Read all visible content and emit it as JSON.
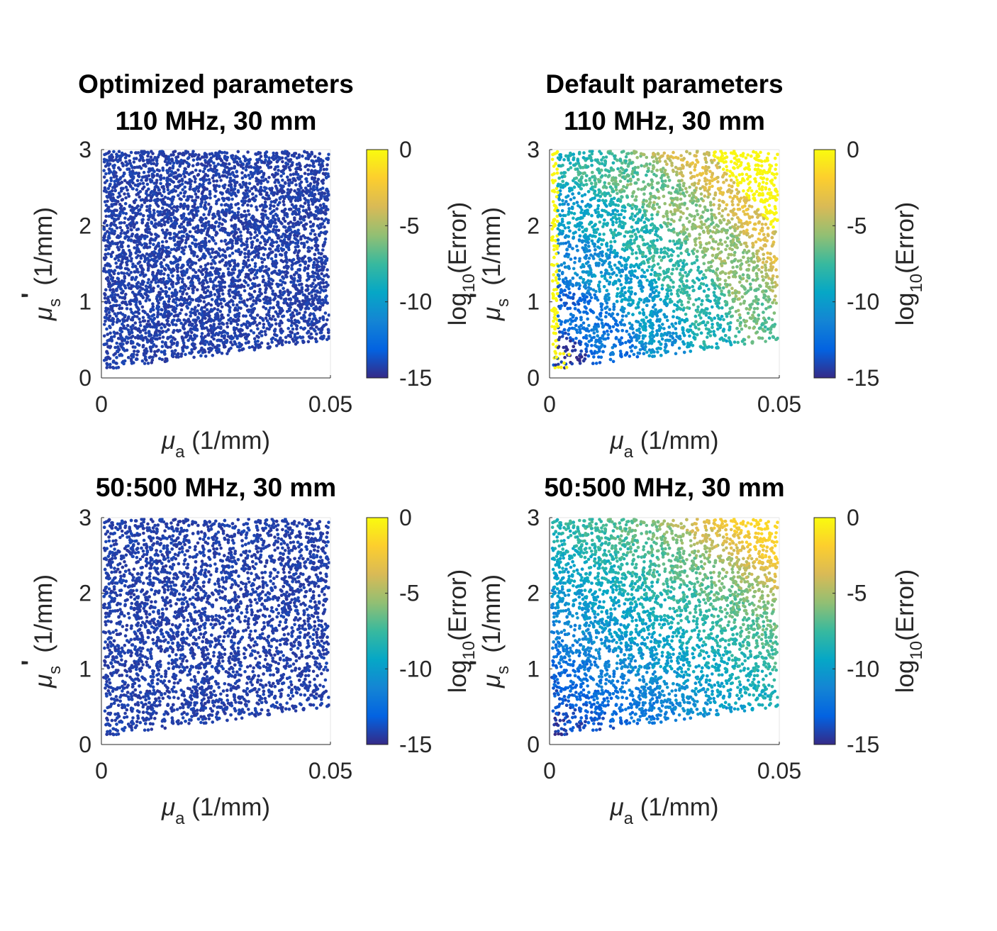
{
  "chart_data": [
    {
      "type": "scatter",
      "title_lines": [
        "Optimized parameters",
        "110 MHz, 30 mm"
      ],
      "xlabel": {
        "symbol": "μ",
        "subscript": "a",
        "unit": "(1/mm)"
      },
      "ylabel": {
        "symbol": "μ",
        "subscript": "s",
        "prime": "'",
        "unit": "(1/mm)"
      },
      "xlim": [
        0,
        0.05
      ],
      "ylim": [
        0,
        3
      ],
      "xticks": [
        "0",
        "0.05"
      ],
      "yticks": [
        "0",
        "1",
        "2",
        "3"
      ],
      "color_variable": "log10(Error)",
      "domain_lower_edge": [
        [
          0.0,
          0.1
        ],
        [
          0.05,
          0.5
        ]
      ],
      "error_regions": [
        {
          "region": "entire sampled domain",
          "log10_error_range": [
            -15,
            -14
          ]
        }
      ],
      "colorbar": {
        "label_prefix": "log",
        "label_sub": "10",
        "label_suffix": "(Error)",
        "clim": [
          -15,
          0
        ],
        "ticks": [
          "0",
          "-5",
          "-10",
          "-15"
        ]
      }
    },
    {
      "type": "scatter",
      "title_lines": [
        "Default parameters",
        "110 MHz, 30 mm"
      ],
      "xlabel": {
        "symbol": "μ",
        "subscript": "a",
        "unit": "(1/mm)"
      },
      "ylabel": {
        "symbol": "μ",
        "subscript": "s",
        "prime": "'",
        "unit": "(1/mm)"
      },
      "xlim": [
        0,
        0.05
      ],
      "ylim": [
        0,
        3
      ],
      "xticks": [
        "0",
        "0.05"
      ],
      "yticks": [
        "0",
        "1",
        "2",
        "3"
      ],
      "color_variable": "log10(Error)",
      "domain_lower_edge": [
        [
          0.0,
          0.1
        ],
        [
          0.05,
          0.5
        ]
      ],
      "error_regions": [
        {
          "region": "low mu_a, low mu_s'",
          "log10_error_range": [
            -15,
            -12
          ]
        },
        {
          "region": "mid domain, banded",
          "log10_error_range": [
            -12,
            -7
          ]
        },
        {
          "region": "mu_a > 0.03, mu_s' > 1.5",
          "log10_error_range": [
            -7,
            -3
          ]
        },
        {
          "region": "upper-right corner (mu_a > 0.03, mu_s' > 2.2)",
          "log10_error_range": [
            -1,
            0
          ]
        },
        {
          "region": "left edge strip mu_a < 0.002",
          "log10_error_range": [
            -1,
            0
          ]
        }
      ],
      "colorbar": {
        "label_prefix": "log",
        "label_sub": "10",
        "label_suffix": "(Error)",
        "clim": [
          -15,
          0
        ],
        "ticks": [
          "0",
          "-5",
          "-10",
          "-15"
        ]
      }
    },
    {
      "type": "scatter",
      "title_lines": [
        "50:500 MHz, 30 mm"
      ],
      "xlabel": {
        "symbol": "μ",
        "subscript": "a",
        "unit": "(1/mm)"
      },
      "ylabel": {
        "symbol": "μ",
        "subscript": "s",
        "prime": "'",
        "unit": "(1/mm)"
      },
      "xlim": [
        0,
        0.05
      ],
      "ylim": [
        0,
        3
      ],
      "xticks": [
        "0",
        "0.05"
      ],
      "yticks": [
        "0",
        "1",
        "2",
        "3"
      ],
      "color_variable": "log10(Error)",
      "domain_lower_edge": [
        [
          0.0,
          0.1
        ],
        [
          0.05,
          0.5
        ]
      ],
      "error_regions": [
        {
          "region": "entire sampled domain",
          "log10_error_range": [
            -15,
            -14
          ]
        }
      ],
      "colorbar": {
        "label_prefix": "log",
        "label_sub": "10",
        "label_suffix": "(Error)",
        "clim": [
          -15,
          0
        ],
        "ticks": [
          "0",
          "-5",
          "-10",
          "-15"
        ]
      }
    },
    {
      "type": "scatter",
      "title_lines": [
        "50:500 MHz, 30 mm"
      ],
      "xlabel": {
        "symbol": "μ",
        "subscript": "a",
        "unit": "(1/mm)"
      },
      "ylabel": {
        "symbol": "μ",
        "subscript": "s",
        "prime": "'",
        "unit": "(1/mm)"
      },
      "xlim": [
        0,
        0.05
      ],
      "ylim": [
        0,
        3
      ],
      "xticks": [
        "0",
        "0.05"
      ],
      "yticks": [
        "0",
        "1",
        "2",
        "3"
      ],
      "color_variable": "log10(Error)",
      "domain_lower_edge": [
        [
          0.0,
          0.1
        ],
        [
          0.05,
          0.5
        ]
      ],
      "error_regions": [
        {
          "region": "low mu_s' (< 1)",
          "log10_error_range": [
            -15,
            -13
          ]
        },
        {
          "region": "mid domain",
          "log10_error_range": [
            -13,
            -9
          ]
        },
        {
          "region": "mu_a > 0.03, mu_s' > 1.5",
          "log10_error_range": [
            -9,
            -5
          ]
        },
        {
          "region": "upper-right corner (mu_a > 0.04, mu_s' > 2.5)",
          "log10_error_range": [
            -4,
            -2
          ]
        }
      ],
      "colorbar": {
        "label_prefix": "log",
        "label_sub": "10",
        "label_suffix": "(Error)",
        "clim": [
          -15,
          0
        ],
        "ticks": [
          "0",
          "-5",
          "-10",
          "-15"
        ]
      }
    }
  ],
  "colormap": {
    "name": "parula",
    "stops": [
      "#352a87",
      "#0363e1",
      "#1485d4",
      "#06a7c6",
      "#38b99e",
      "#92bf73",
      "#d9ba56",
      "#fcce2e",
      "#f9fb0e"
    ]
  }
}
